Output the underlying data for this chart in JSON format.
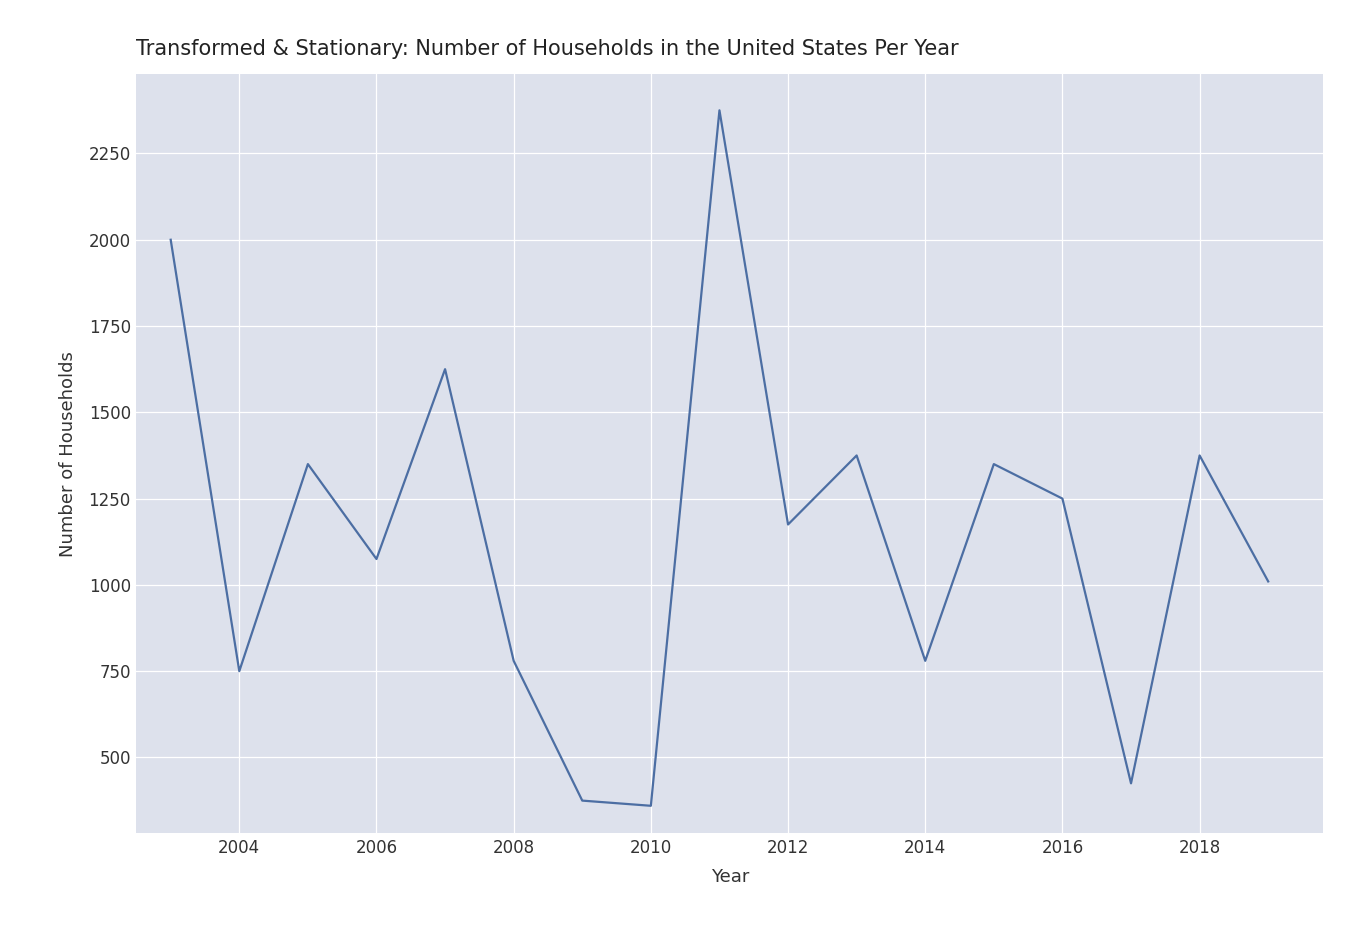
{
  "years": [
    2003,
    2004,
    2005,
    2006,
    2007,
    2008,
    2009,
    2010,
    2011,
    2012,
    2013,
    2014,
    2015,
    2016,
    2017,
    2018,
    2019
  ],
  "values": [
    2000,
    750,
    1350,
    1075,
    1625,
    780,
    375,
    360,
    2375,
    1175,
    1375,
    780,
    1350,
    1250,
    425,
    1375,
    1010
  ],
  "line_color": "#4c6ea3",
  "title": "Transformed & Stationary: Number of Households in the United States Per Year",
  "xlabel": "Year",
  "ylabel": "Number of Households",
  "axes_background": "#dde1ec",
  "fig_background": "#ffffff",
  "ylim": [
    280,
    2480
  ],
  "yticks": [
    500,
    750,
    1000,
    1250,
    1500,
    1750,
    2000,
    2250
  ],
  "xticks": [
    2004,
    2006,
    2008,
    2010,
    2012,
    2014,
    2016,
    2018
  ],
  "xlim": [
    2002.5,
    2019.8
  ],
  "title_fontsize": 15,
  "label_fontsize": 13,
  "tick_fontsize": 12,
  "linewidth": 1.6
}
